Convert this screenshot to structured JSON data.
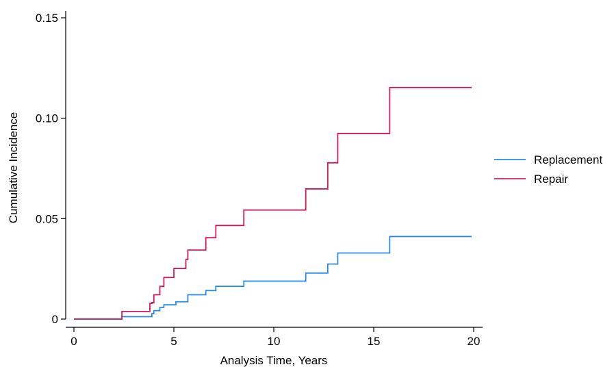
{
  "chart_data": {
    "type": "line",
    "step": true,
    "title": "",
    "xlabel": "Analysis Time, Years",
    "ylabel": "Cumulative Incidence",
    "xlim": [
      0,
      20
    ],
    "ylim": [
      0,
      0.15
    ],
    "xticks": [
      0,
      5,
      10,
      15,
      20
    ],
    "yticks": [
      0,
      0.05,
      0.1,
      0.15
    ],
    "xtick_labels": [
      "0",
      "5",
      "10",
      "15",
      "20"
    ],
    "ytick_labels": [
      "0",
      "0.05",
      "0.10",
      "0.15"
    ],
    "grid": false,
    "legend_position": "right",
    "series": [
      {
        "name": "Replacement",
        "color": "#2a8be6",
        "x": [
          0,
          2.4,
          3.9,
          4.0,
          4.3,
          4.5,
          5.1,
          5.7,
          6.6,
          7.1,
          8.5,
          11.6,
          12.7,
          13.2,
          15.8,
          19.9
        ],
        "y": [
          0,
          0.0012,
          0.0027,
          0.0042,
          0.0058,
          0.0071,
          0.0086,
          0.0121,
          0.0142,
          0.0163,
          0.0189,
          0.0229,
          0.0274,
          0.0329,
          0.0411,
          0.0411
        ]
      },
      {
        "name": "Repair",
        "color": "#d6195a",
        "x": [
          0,
          2.4,
          3.8,
          3.9,
          4.0,
          4.3,
          4.5,
          5.0,
          5.6,
          5.7,
          6.6,
          7.1,
          8.5,
          11.6,
          12.7,
          13.2,
          15.8,
          19.9
        ],
        "y": [
          0,
          0.0038,
          0.0078,
          0.0082,
          0.0121,
          0.0163,
          0.0207,
          0.0252,
          0.0296,
          0.0344,
          0.0405,
          0.0466,
          0.0543,
          0.0648,
          0.0778,
          0.0924,
          0.1153,
          0.1153
        ]
      }
    ]
  }
}
